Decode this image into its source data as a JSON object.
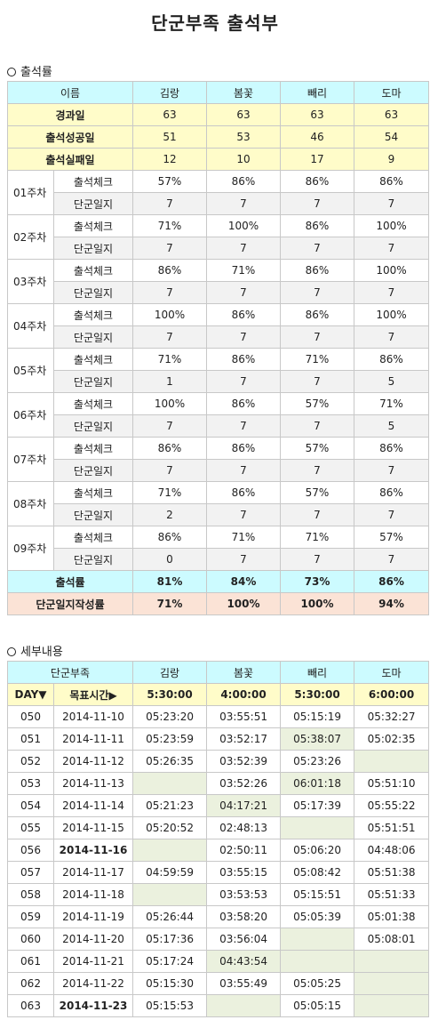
{
  "title": "단군부족 출석부",
  "section1": {
    "label": "출석률"
  },
  "attendance": {
    "header": [
      "이름",
      "김랑",
      "봄꽃",
      "빼리",
      "도마"
    ],
    "summary": [
      {
        "label": "경과일",
        "values": [
          "63",
          "63",
          "63",
          "63"
        ]
      },
      {
        "label": "출석성공일",
        "values": [
          "51",
          "53",
          "46",
          "54"
        ]
      },
      {
        "label": "출석실패일",
        "values": [
          "12",
          "10",
          "17",
          "9"
        ]
      }
    ],
    "check_label": "출석체크",
    "journal_label": "단군일지",
    "weeks": [
      {
        "week": "01주차",
        "check": [
          "57%",
          "86%",
          "86%",
          "86%"
        ],
        "journal": [
          "7",
          "7",
          "7",
          "7"
        ]
      },
      {
        "week": "02주차",
        "check": [
          "71%",
          "100%",
          "86%",
          "100%"
        ],
        "journal": [
          "7",
          "7",
          "7",
          "7"
        ]
      },
      {
        "week": "03주차",
        "check": [
          "86%",
          "71%",
          "86%",
          "100%"
        ],
        "journal": [
          "7",
          "7",
          "7",
          "7"
        ]
      },
      {
        "week": "04주차",
        "check": [
          "100%",
          "86%",
          "86%",
          "100%"
        ],
        "journal": [
          "7",
          "7",
          "7",
          "7"
        ]
      },
      {
        "week": "05주차",
        "check": [
          "71%",
          "86%",
          "71%",
          "86%"
        ],
        "journal": [
          "1",
          "7",
          "7",
          "5"
        ]
      },
      {
        "week": "06주차",
        "check": [
          "100%",
          "86%",
          "57%",
          "71%"
        ],
        "journal": [
          "7",
          "7",
          "7",
          "5"
        ]
      },
      {
        "week": "07주차",
        "check": [
          "86%",
          "86%",
          "57%",
          "86%"
        ],
        "journal": [
          "7",
          "7",
          "7",
          "7"
        ]
      },
      {
        "week": "08주차",
        "check": [
          "71%",
          "86%",
          "57%",
          "86%"
        ],
        "journal": [
          "2",
          "7",
          "7",
          "7"
        ]
      },
      {
        "week": "09주차",
        "check": [
          "86%",
          "71%",
          "71%",
          "57%"
        ],
        "journal": [
          "0",
          "7",
          "7",
          "7"
        ]
      }
    ],
    "rate": {
      "label": "출석률",
      "values": [
        "81%",
        "84%",
        "73%",
        "86%"
      ]
    },
    "journal_rate": {
      "label": "단군일지작성률",
      "values": [
        "71%",
        "100%",
        "100%",
        "94%"
      ]
    }
  },
  "section2": {
    "label": "세부내용"
  },
  "detail": {
    "header": [
      "단군부족",
      "김랑",
      "봄꽃",
      "빼리",
      "도마"
    ],
    "day_label": "DAY▼",
    "target_label": "목표시간▶",
    "targets": [
      "5:30:00",
      "4:00:00",
      "5:30:00",
      "6:00:00"
    ],
    "rows": [
      {
        "day": "050",
        "date": "2014-11-10",
        "times": [
          "05:23:20",
          "03:55:51",
          "05:15:19",
          "05:32:27"
        ]
      },
      {
        "day": "051",
        "date": "2014-11-11",
        "times": [
          "05:23:59",
          "03:52:17",
          "05:38:07",
          "05:02:35"
        ]
      },
      {
        "day": "052",
        "date": "2014-11-12",
        "times": [
          "05:26:35",
          "03:52:39",
          "05:23:26",
          ""
        ]
      },
      {
        "day": "053",
        "date": "2014-11-13",
        "times": [
          "",
          "03:52:26",
          "06:01:18",
          "05:51:10"
        ]
      },
      {
        "day": "054",
        "date": "2014-11-14",
        "times": [
          "05:21:23",
          "04:17:21",
          "05:17:39",
          "05:55:22"
        ]
      },
      {
        "day": "055",
        "date": "2014-11-15",
        "times": [
          "05:20:52",
          "02:48:13",
          "",
          "05:51:51"
        ]
      },
      {
        "day": "056",
        "date": "2014-11-16",
        "times": [
          "",
          "02:50:11",
          "05:06:20",
          "04:48:06"
        ]
      },
      {
        "day": "057",
        "date": "2014-11-17",
        "times": [
          "04:59:59",
          "03:55:15",
          "05:08:42",
          "05:51:38"
        ]
      },
      {
        "day": "058",
        "date": "2014-11-18",
        "times": [
          "",
          "03:53:53",
          "05:15:51",
          "05:51:33"
        ]
      },
      {
        "day": "059",
        "date": "2014-11-19",
        "times": [
          "05:26:44",
          "03:58:20",
          "05:05:39",
          "05:01:38"
        ]
      },
      {
        "day": "060",
        "date": "2014-11-20",
        "times": [
          "05:17:36",
          "03:56:04",
          "",
          "05:08:01"
        ]
      },
      {
        "day": "061",
        "date": "2014-11-21",
        "times": [
          "05:17:24",
          "04:43:54",
          "",
          ""
        ]
      },
      {
        "day": "062",
        "date": "2014-11-22",
        "times": [
          "05:15:30",
          "03:55:49",
          "05:05:25",
          ""
        ]
      },
      {
        "day": "063",
        "date": "2014-11-23",
        "times": [
          "05:15:53",
          "",
          "05:05:15",
          ""
        ]
      }
    ]
  }
}
